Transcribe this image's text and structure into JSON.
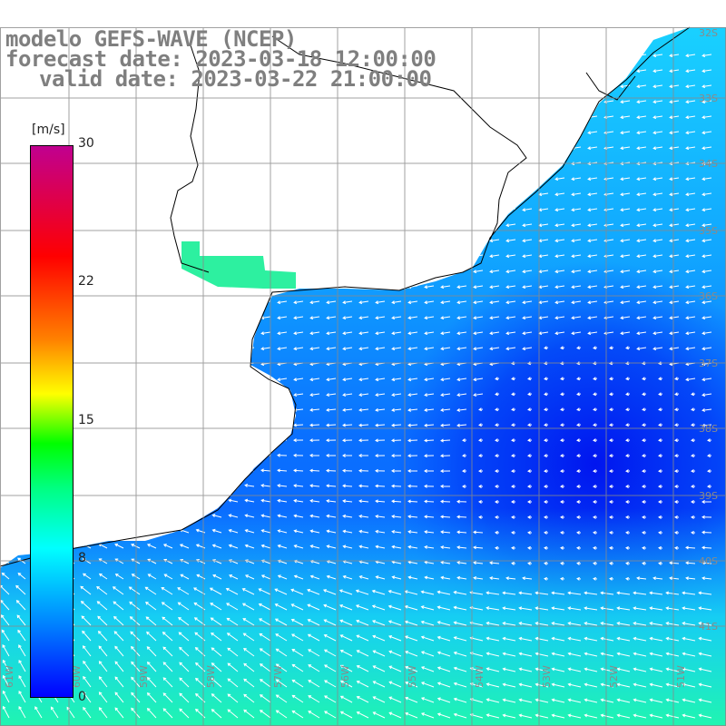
{
  "title": {
    "model": "modelo GEFS-WAVE (NCEP)",
    "forecast": "forecast date: 2023-03-18 12:00:00",
    "valid": "valid date: 2023-03-22 21:00:00"
  },
  "colorbar": {
    "unit": "[m/s]",
    "ticks": [
      "30",
      "22",
      "15",
      "8",
      "0"
    ],
    "tick_values": [
      30,
      22,
      15,
      8,
      0
    ],
    "colors": [
      "#0000ff",
      "#0080ff",
      "#00ffff",
      "#00ff00",
      "#ffff00",
      "#ff8000",
      "#ff0000",
      "#c00090"
    ]
  },
  "map": {
    "lon_labels": [
      "61W",
      "60W",
      "59W",
      "58W",
      "57W",
      "56W",
      "55W",
      "54W",
      "53W",
      "52W",
      "51W"
    ],
    "lat_labels": [
      "32S",
      "33S",
      "34S",
      "35S",
      "36S",
      "37S",
      "38S",
      "39S",
      "40S",
      "41S"
    ],
    "field": "wind speed with direction arrows",
    "land_color": "#ffffff",
    "grid_color": "#808080"
  }
}
